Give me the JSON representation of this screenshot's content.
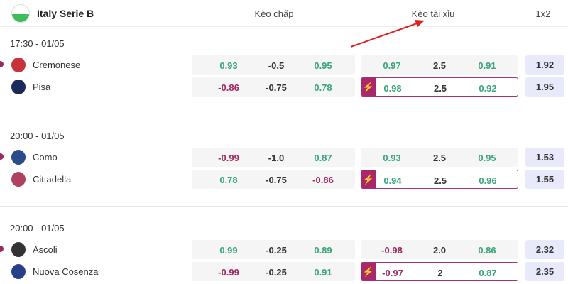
{
  "header": {
    "league": "Italy Serie B",
    "col_handicap": "Kèo chấp",
    "col_overunder": "Kèo tài xỉu",
    "col_1x2": "1x2"
  },
  "colors": {
    "positive": "#3aa57a",
    "negative": "#a0285f",
    "accent": "#a8286a",
    "arrow": "#e02020"
  },
  "matches": [
    {
      "time": "17:30 - 01/05",
      "teams": [
        {
          "name": "Cremonese",
          "hc": [
            "0.93",
            "-0.5",
            "0.95"
          ],
          "ou": [
            "0.97",
            "2.5",
            "0.91"
          ],
          "x12": "1.92"
        },
        {
          "name": "Pisa",
          "hc": [
            "-0.86",
            "-0.75",
            "0.78"
          ],
          "ou": [
            "0.98",
            "2.5",
            "0.92"
          ],
          "x12": "1.95"
        }
      ]
    },
    {
      "time": "20:00 - 01/05",
      "teams": [
        {
          "name": "Como",
          "hc": [
            "-0.99",
            "-1.0",
            "0.87"
          ],
          "ou": [
            "0.93",
            "2.5",
            "0.95"
          ],
          "x12": "1.53"
        },
        {
          "name": "Cittadella",
          "hc": [
            "0.78",
            "-0.75",
            "-0.86"
          ],
          "ou": [
            "0.94",
            "2.5",
            "0.96"
          ],
          "x12": "1.55"
        }
      ]
    },
    {
      "time": "20:00 - 01/05",
      "teams": [
        {
          "name": "Ascoli",
          "hc": [
            "0.99",
            "-0.25",
            "0.89"
          ],
          "ou": [
            "-0.98",
            "2.0",
            "0.86"
          ],
          "x12": "2.32"
        },
        {
          "name": "Nuova Cosenza",
          "hc": [
            "-0.99",
            "-0.25",
            "0.91"
          ],
          "ou": [
            "-0.97",
            "2",
            "0.87"
          ],
          "x12": "2.35"
        }
      ]
    }
  ]
}
